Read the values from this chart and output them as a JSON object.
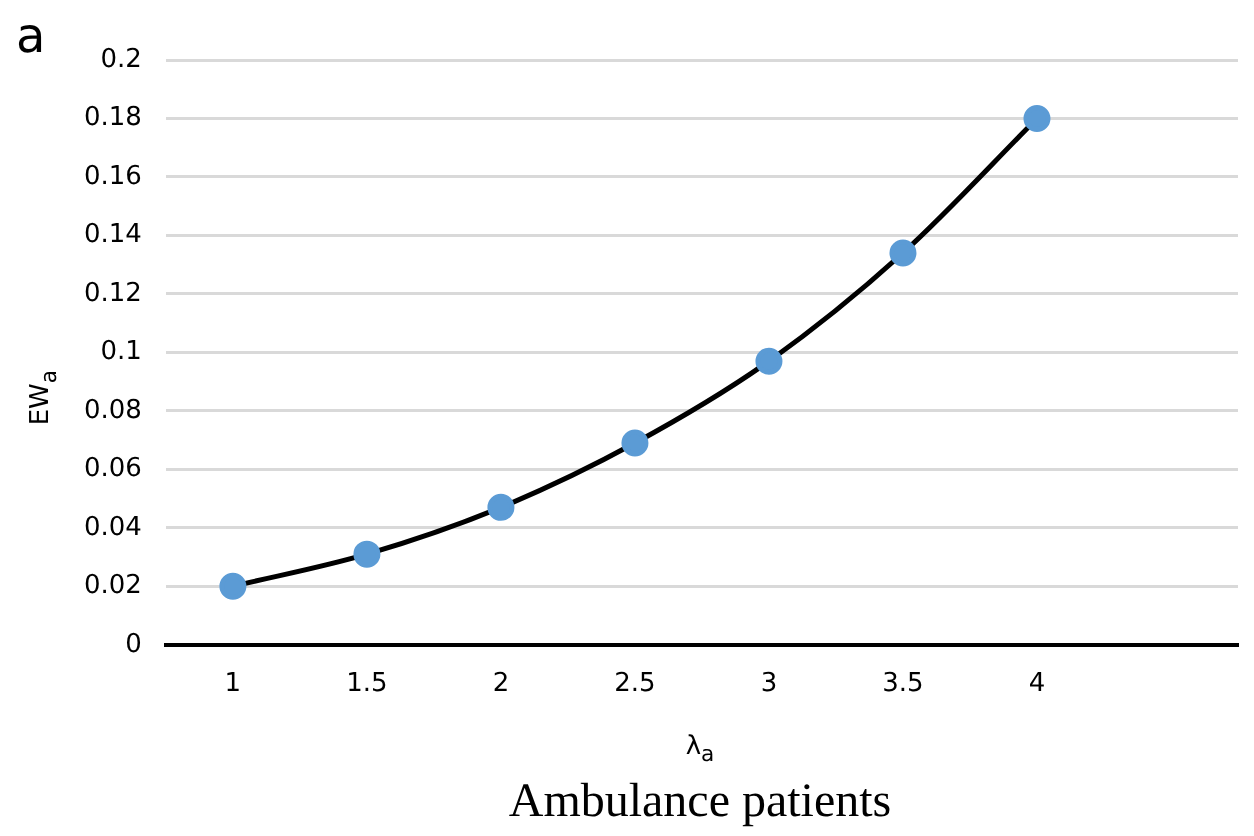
{
  "chart_data": {
    "type": "line",
    "title": "Ambulance patients",
    "xlabel": "λ$_{a}$",
    "ylabel": "EW$_{a}$",
    "annotations": [
      "a"
    ],
    "categories": [
      "1",
      "1.5",
      "2",
      "2.5",
      "3",
      "3.5",
      "4",
      null
    ],
    "series": [
      {
        "color": "#5b9bd5",
        "values": [
          0.02,
          0.031,
          0.047,
          0.069,
          0.097,
          0.134,
          0.18,
          null
        ]
      }
    ],
    "ylim": [
      0,
      0.2
    ],
    "yticks": [
      0,
      0.02,
      0.04,
      0.06,
      0.08,
      0.1,
      0.12,
      0.14,
      0.16,
      0.18,
      0.2
    ],
    "grid": "y",
    "legend": false,
    "marker": "circle",
    "line_style": "solid"
  }
}
